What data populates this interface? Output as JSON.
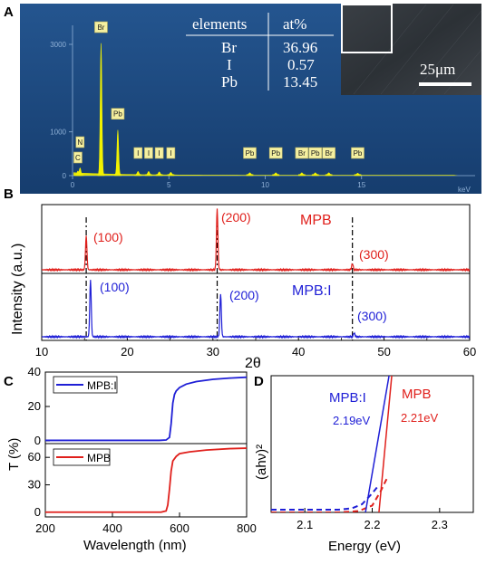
{
  "panel_labels": {
    "a": "A",
    "b": "B",
    "c": "C",
    "d": "D"
  },
  "colors": {
    "red": "#e0201c",
    "blue": "#1f1fd6",
    "yellow": "#f2f200",
    "eds_bg": "#1e4d86"
  },
  "chart_data": [
    {
      "id": "A",
      "type": "bar",
      "subtype": "eds-spectrum",
      "xlabel": "keV",
      "xlim": [
        0,
        20
      ],
      "xticks": [
        0,
        5,
        10,
        15
      ],
      "ylim": [
        0,
        3600
      ],
      "yticks": [
        0,
        1000,
        3000
      ],
      "peaks": [
        {
          "label": "N",
          "x": 0.39,
          "y": 150
        },
        {
          "label": "C",
          "x": 0.28,
          "y": 80
        },
        {
          "label": "Br",
          "x": 1.48,
          "y": 3000
        },
        {
          "label": "Pb",
          "x": 2.35,
          "y": 1020
        },
        {
          "label": "I",
          "x": 3.4,
          "y": 70
        },
        {
          "label": "I",
          "x": 3.95,
          "y": 70
        },
        {
          "label": "I",
          "x": 4.5,
          "y": 60
        },
        {
          "label": "I",
          "x": 5.1,
          "y": 50
        },
        {
          "label": "Pb",
          "x": 9.2,
          "y": 40
        },
        {
          "label": "Pb",
          "x": 10.55,
          "y": 40
        },
        {
          "label": "Br",
          "x": 11.9,
          "y": 40
        },
        {
          "label": "Pb",
          "x": 12.6,
          "y": 40
        },
        {
          "label": "Br",
          "x": 13.3,
          "y": 40
        },
        {
          "label": "Pb",
          "x": 14.8,
          "y": 30
        }
      ],
      "table": {
        "headers": [
          "elements",
          "at%"
        ],
        "rows": [
          [
            "Br",
            "36.96"
          ],
          [
            "I",
            "0.57"
          ],
          [
            "Pb",
            "13.45"
          ]
        ]
      },
      "scale_bar": "25μm"
    },
    {
      "id": "B",
      "type": "line",
      "xlabel": "2θ",
      "ylabel": "Intensity (a.u.)",
      "xlim": [
        10,
        60
      ],
      "xticks": [
        10,
        20,
        30,
        40,
        50,
        60
      ],
      "series": [
        {
          "name": "MPB",
          "color": "#e0201c",
          "peaks": [
            {
              "x": 15.2,
              "height": 0.55,
              "label": "(100)"
            },
            {
              "x": 30.5,
              "height": 1.0,
              "label": "(200)"
            },
            {
              "x": 46.3,
              "height": 0.1,
              "label": "(300)"
            }
          ]
        },
        {
          "name": "MPB:I",
          "color": "#1f1fd6",
          "peaks": [
            {
              "x": 15.7,
              "height": 0.9,
              "label": "(100)"
            },
            {
              "x": 30.9,
              "height": 0.68,
              "label": "(200)"
            },
            {
              "x": 46.5,
              "height": 0.06,
              "label": "(300)"
            }
          ]
        }
      ],
      "reference_lines": [
        15.2,
        30.5,
        46.3
      ]
    },
    {
      "id": "C",
      "type": "line",
      "xlabel": "Wavelength (nm)",
      "ylabel": "T (%)",
      "xlim": [
        200,
        800
      ],
      "xticks": [
        200,
        400,
        600,
        800
      ],
      "subplots": [
        {
          "name": "MPB:I",
          "color": "#1f1fd6",
          "ylim": [
            0,
            40
          ],
          "yticks": [
            0,
            20,
            40
          ],
          "x": [
            200,
            540,
            560,
            570,
            575,
            580,
            585,
            590,
            600,
            620,
            650,
            700,
            750,
            800
          ],
          "y": [
            0.3,
            0.3,
            0.5,
            2,
            10,
            22,
            27,
            29,
            31,
            33,
            34.5,
            35.8,
            36.5,
            37
          ]
        },
        {
          "name": "MPB",
          "color": "#e0201c",
          "ylim": [
            -5,
            75
          ],
          "yticks": [
            0,
            30,
            60
          ],
          "x": [
            200,
            545,
            560,
            565,
            570,
            575,
            580,
            590,
            600,
            630,
            680,
            750,
            800
          ],
          "y": [
            0.2,
            0.2,
            1.5,
            8,
            25,
            45,
            56,
            61,
            64,
            66,
            68,
            69.5,
            70
          ]
        }
      ]
    },
    {
      "id": "D",
      "type": "line",
      "xlabel": "Energy (eV)",
      "ylabel": "(ahν)²",
      "xlim": [
        2.05,
        2.35
      ],
      "xticks": [
        2.1,
        2.2,
        2.3
      ],
      "ylim": [
        0,
        1
      ],
      "series": [
        {
          "name": "MPB:I",
          "color": "#1f1fd6",
          "annotation": "2.19eV",
          "data_x": [
            2.05,
            2.1,
            2.15,
            2.17,
            2.185,
            2.2,
            2.21
          ],
          "data_y": [
            0.02,
            0.02,
            0.02,
            0.03,
            0.06,
            0.14,
            0.2
          ],
          "fit_x": [
            2.19,
            2.225
          ],
          "fit_y": [
            0.0,
            1.0
          ]
        },
        {
          "name": "MPB",
          "color": "#e0201c",
          "annotation": "2.21eV",
          "data_x": [
            2.05,
            2.1,
            2.15,
            2.18,
            2.2,
            2.212,
            2.222
          ],
          "data_y": [
            0.0,
            0.0,
            0.0,
            0.01,
            0.05,
            0.15,
            0.25
          ],
          "fit_x": [
            2.21,
            2.229
          ],
          "fit_y": [
            0.0,
            1.0
          ]
        }
      ]
    }
  ]
}
